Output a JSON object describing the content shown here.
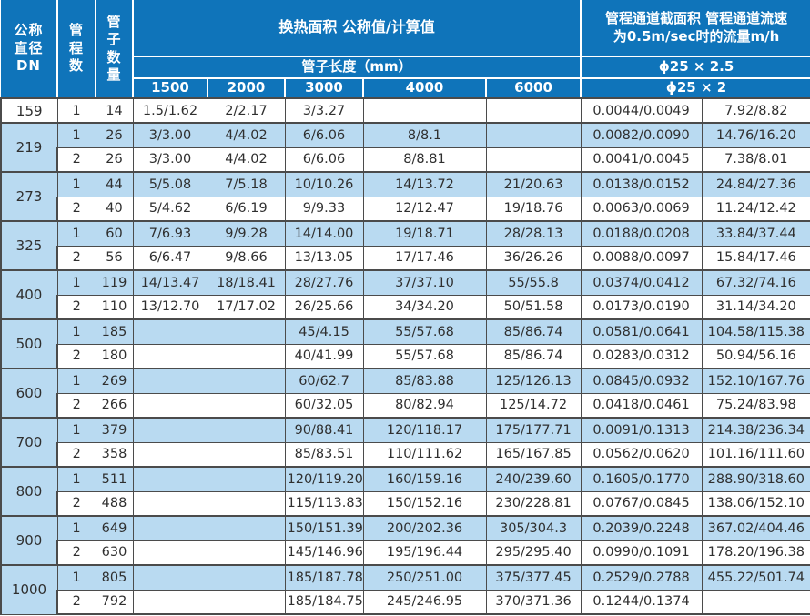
{
  "colors": {
    "header_blue": "#0f74ba",
    "row_blue": "#b9daf1",
    "border": "#4b4b4b",
    "header_text": "#ffffff",
    "cell_text": "#2f2f2f"
  },
  "chart_data": {
    "type": "table",
    "header": {
      "dn": "公称\n直径\nDN",
      "pass": "管\n程\n数",
      "tubes": "管\n子\n数\n量",
      "area_title": "换热面积 公称值/计算值",
      "tube_length_title": "管子长度（mm）",
      "lengths": [
        "1500",
        "2000",
        "3000",
        "4000",
        "6000"
      ],
      "right_title": "管程通道截面积 管程通道流速\n为0.5m/sec时的流量m/h",
      "spec1": "ϕ25 × 2.5",
      "spec2": "ϕ25 × 2"
    },
    "groups": [
      {
        "dn": "159",
        "rows": [
          {
            "pass": "1",
            "tubes": "14",
            "shaded": false,
            "values": [
              "1.5/1.62",
              "2/2.17",
              "3/3.27",
              "",
              "",
              "0.0044/0.0049",
              "7.92/8.82"
            ]
          }
        ]
      },
      {
        "dn": "219",
        "rows": [
          {
            "pass": "1",
            "tubes": "26",
            "shaded": true,
            "values": [
              "3/3.00",
              "4/4.02",
              "6/6.06",
              "8/8.1",
              "",
              "0.0082/0.0090",
              "14.76/16.20"
            ]
          },
          {
            "pass": "2",
            "tubes": "26",
            "shaded": false,
            "values": [
              "3/3.00",
              "4/4.02",
              "6/6.06",
              "8/8.81",
              "",
              "0.0041/0.0045",
              "7.38/8.01"
            ]
          }
        ]
      },
      {
        "dn": "273",
        "rows": [
          {
            "pass": "1",
            "tubes": "44",
            "shaded": true,
            "values": [
              "5/5.08",
              "7/5.18",
              "10/10.26",
              "14/13.72",
              "21/20.63",
              "0.0138/0.0152",
              "24.84/27.36"
            ]
          },
          {
            "pass": "2",
            "tubes": "40",
            "shaded": false,
            "values": [
              "5/4.62",
              "6/6.19",
              "9/9.33",
              "12/12.47",
              "19/18.76",
              "0.0063/0.0069",
              "11.24/12.42"
            ]
          }
        ]
      },
      {
        "dn": "325",
        "rows": [
          {
            "pass": "1",
            "tubes": "60",
            "shaded": true,
            "values": [
              "7/6.93",
              "9/9.28",
              "14/14.00",
              "19/18.71",
              "28/28.13",
              "0.0188/0.0208",
              "33.84/37.44"
            ]
          },
          {
            "pass": "2",
            "tubes": "56",
            "shaded": false,
            "values": [
              "6/6.47",
              "9/8.66",
              "13/13.05",
              "17/17.46",
              "36/26.26",
              "0.0088/0.0097",
              "15.84/17.46"
            ]
          }
        ]
      },
      {
        "dn": "400",
        "rows": [
          {
            "pass": "1",
            "tubes": "119",
            "shaded": true,
            "values": [
              "14/13.47",
              "18/18.41",
              "28/27.76",
              "37/37.10",
              "55/55.8",
              "0.0374/0.0412",
              "67.32/74.16"
            ]
          },
          {
            "pass": "2",
            "tubes": "110",
            "shaded": false,
            "values": [
              "13/12.70",
              "17/17.02",
              "26/25.66",
              "34/34.20",
              "50/51.58",
              "0.0173/0.0190",
              "31.14/34.20"
            ]
          }
        ]
      },
      {
        "dn": "500",
        "rows": [
          {
            "pass": "1",
            "tubes": "185",
            "shaded": true,
            "values": [
              "",
              "",
              "45/4.15",
              "55/57.68",
              "85/86.74",
              "0.0581/0.0641",
              "104.58/115.38"
            ]
          },
          {
            "pass": "2",
            "tubes": "180",
            "shaded": false,
            "values": [
              "",
              "",
              "40/41.99",
              "55/57.68",
              "85/86.74",
              "0.0283/0.0312",
              "50.94/56.16"
            ]
          }
        ]
      },
      {
        "dn": "600",
        "rows": [
          {
            "pass": "1",
            "tubes": "269",
            "shaded": true,
            "values": [
              "",
              "",
              "60/62.7",
              "85/83.88",
              "125/126.13",
              "0.0845/0.0932",
              "152.10/167.76"
            ]
          },
          {
            "pass": "2",
            "tubes": "266",
            "shaded": false,
            "values": [
              "",
              "",
              "60/32.05",
              "80/82.94",
              "125/14.72",
              "0.0418/0.0461",
              "75.24/83.98"
            ]
          }
        ]
      },
      {
        "dn": "700",
        "rows": [
          {
            "pass": "1",
            "tubes": "379",
            "shaded": true,
            "values": [
              "",
              "",
              "90/88.41",
              "120/118.17",
              "175/177.71",
              "0.0091/0.1313",
              "214.38/236.34"
            ]
          },
          {
            "pass": "2",
            "tubes": "358",
            "shaded": false,
            "values": [
              "",
              "",
              "85/83.51",
              "110/111.62",
              "165/167.85",
              "0.0562/0.0620",
              "101.16/111.60"
            ]
          }
        ]
      },
      {
        "dn": "800",
        "rows": [
          {
            "pass": "1",
            "tubes": "511",
            "shaded": true,
            "values": [
              "",
              "",
              "120/119.20",
              "160/159.16",
              "240/239.60",
              "0.1605/0.1770",
              "288.90/318.60"
            ]
          },
          {
            "pass": "2",
            "tubes": "488",
            "shaded": false,
            "values": [
              "",
              "",
              "115/113.83",
              "150/152.16",
              "230/228.81",
              "0.0767/0.0845",
              "138.06/152.10"
            ]
          }
        ]
      },
      {
        "dn": "900",
        "rows": [
          {
            "pass": "1",
            "tubes": "649",
            "shaded": true,
            "values": [
              "",
              "",
              "150/151.39",
              "200/202.36",
              "305/304.3",
              "0.2039/0.2248",
              "367.02/404.46"
            ]
          },
          {
            "pass": "2",
            "tubes": "630",
            "shaded": false,
            "values": [
              "",
              "",
              "145/146.96",
              "195/196.44",
              "295/295.40",
              "0.0990/0.1091",
              "178.20/196.38"
            ]
          }
        ]
      },
      {
        "dn": "1000",
        "rows": [
          {
            "pass": "1",
            "tubes": "805",
            "shaded": true,
            "values": [
              "",
              "",
              "185/187.78",
              "250/251.00",
              "375/377.45",
              "0.2529/0.2788",
              "455.22/501.74"
            ]
          },
          {
            "pass": "2",
            "tubes": "792",
            "shaded": false,
            "values": [
              "",
              "",
              "185/184.75",
              "245/246.95",
              "370/371.36",
              "0.1244/0.1374",
              ""
            ]
          }
        ]
      }
    ]
  }
}
